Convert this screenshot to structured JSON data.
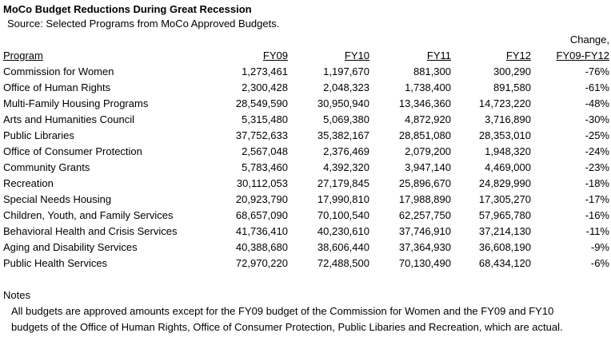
{
  "title": "MoCo Budget Reductions During Great Recession",
  "source": "Source: Selected Programs from MoCo Approved Budgets.",
  "header": {
    "change_top": "Change,",
    "program": "Program",
    "fy09": "FY09",
    "fy10": "FY10",
    "fy11": "FY11",
    "fy12": "FY12",
    "change_bottom": "FY09-FY12"
  },
  "rows": [
    {
      "program": "Commission for Women",
      "fy09": "1,273,461",
      "fy10": "1,197,670",
      "fy11": "881,300",
      "fy12": "300,290",
      "change": "-76%"
    },
    {
      "program": "Office of Human Rights",
      "fy09": "2,300,428",
      "fy10": "2,048,323",
      "fy11": "1,738,400",
      "fy12": "891,580",
      "change": "-61%"
    },
    {
      "program": "Multi-Family Housing Programs",
      "fy09": "28,549,590",
      "fy10": "30,950,940",
      "fy11": "13,346,360",
      "fy12": "14,723,220",
      "change": "-48%"
    },
    {
      "program": "Arts and Humanities Council",
      "fy09": "5,315,480",
      "fy10": "5,069,380",
      "fy11": "4,872,920",
      "fy12": "3,716,890",
      "change": "-30%"
    },
    {
      "program": "Public Libraries",
      "fy09": "37,752,633",
      "fy10": "35,382,167",
      "fy11": "28,851,080",
      "fy12": "28,353,010",
      "change": "-25%"
    },
    {
      "program": "Office of Consumer Protection",
      "fy09": "2,567,048",
      "fy10": "2,376,469",
      "fy11": "2,079,200",
      "fy12": "1,948,320",
      "change": "-24%"
    },
    {
      "program": "Community Grants",
      "fy09": "5,783,460",
      "fy10": "4,392,320",
      "fy11": "3,947,140",
      "fy12": "4,469,000",
      "change": "-23%"
    },
    {
      "program": "Recreation",
      "fy09": "30,112,053",
      "fy10": "27,179,845",
      "fy11": "25,896,670",
      "fy12": "24,829,990",
      "change": "-18%"
    },
    {
      "program": "Special Needs Housing",
      "fy09": "20,923,790",
      "fy10": "17,990,810",
      "fy11": "17,988,890",
      "fy12": "17,305,270",
      "change": "-17%"
    },
    {
      "program": "Children, Youth, and Family Services",
      "fy09": "68,657,090",
      "fy10": "70,100,540",
      "fy11": "62,257,750",
      "fy12": "57,965,780",
      "change": "-16%"
    },
    {
      "program": "Behavioral Health and Crisis Services",
      "fy09": "41,736,410",
      "fy10": "40,230,610",
      "fy11": "37,746,910",
      "fy12": "37,214,130",
      "change": "-11%"
    },
    {
      "program": "Aging and Disability Services",
      "fy09": "40,388,680",
      "fy10": "38,606,440",
      "fy11": "37,364,930",
      "fy12": "36,608,190",
      "change": "-9%"
    },
    {
      "program": "Public Health Services",
      "fy09": "72,970,220",
      "fy10": "72,488,500",
      "fy11": "70,130,490",
      "fy12": "68,434,120",
      "change": "-6%"
    }
  ],
  "notes": {
    "label": "Notes",
    "line1": "All budgets are approved amounts except for the FY09 budget of the Commission for Women and the FY09 and FY10",
    "line2": "budgets of the Office of Human Rights, Office of Consumer Protection, Public Libaries and Recreation, which are actual."
  }
}
